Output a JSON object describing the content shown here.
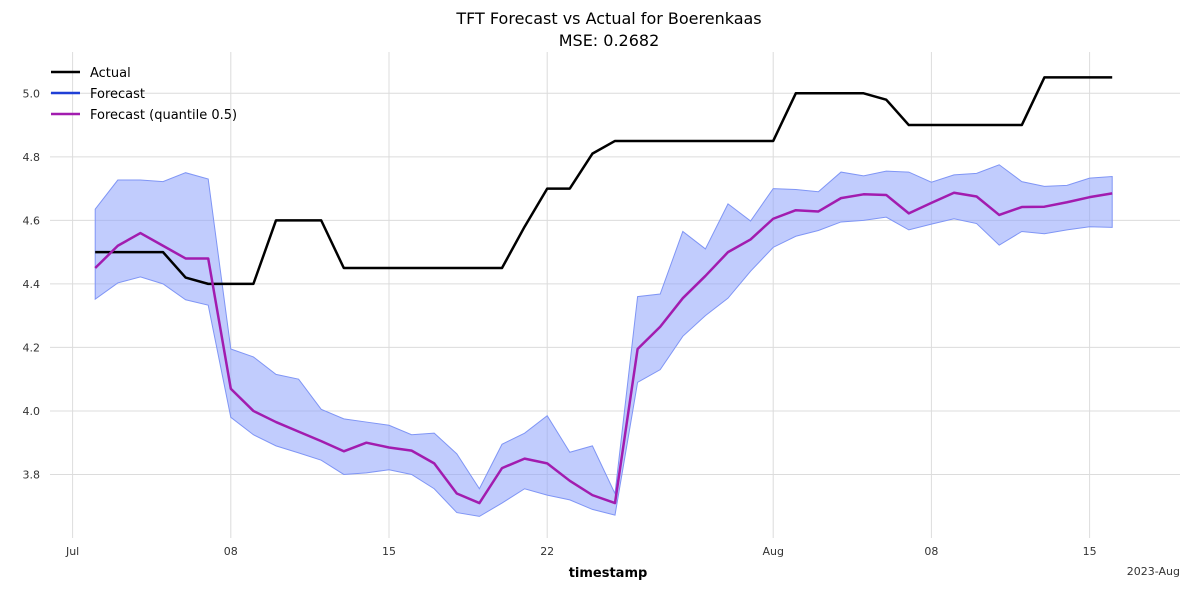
{
  "chart_data": {
    "type": "line",
    "title": "TFT Forecast vs Actual for Boerenkaas",
    "subtitle": "MSE: 0.2682",
    "xlabel": "timestamp",
    "ylabel": "",
    "x_start": "2023-07-02",
    "x_end": "2023-08-16",
    "xlim": [
      "2023-06-30",
      "2023-08-19"
    ],
    "ylim": [
      3.6,
      5.13
    ],
    "yticks": [
      3.8,
      4.0,
      4.2,
      4.4,
      4.6,
      4.8,
      5.0
    ],
    "ytick_labels": [
      "3.8",
      "4.0",
      "4.2",
      "4.4",
      "4.6",
      "4.8",
      "5.0"
    ],
    "xticks": [
      {
        "date": "2023-07-01",
        "label": "Jul"
      },
      {
        "date": "2023-07-08",
        "label": "08"
      },
      {
        "date": "2023-07-15",
        "label": "15"
      },
      {
        "date": "2023-07-22",
        "label": "22"
      },
      {
        "date": "2023-08-01",
        "label": "Aug"
      },
      {
        "date": "2023-08-08",
        "label": "08"
      },
      {
        "date": "2023-08-15",
        "label": "15"
      }
    ],
    "x_offset_label": "2023-Aug",
    "grid": true,
    "legend_position": "top-left",
    "series": [
      {
        "name": "Actual",
        "color": "#000000",
        "values": [
          4.5,
          4.5,
          4.5,
          4.5,
          4.42,
          4.4,
          4.4,
          4.4,
          4.6,
          4.6,
          4.6,
          4.45,
          4.45,
          4.45,
          4.45,
          4.45,
          4.45,
          4.45,
          4.45,
          4.58,
          4.7,
          4.7,
          4.81,
          4.85,
          4.85,
          4.85,
          4.85,
          4.85,
          4.85,
          4.85,
          4.85,
          5.0,
          5.0,
          5.0,
          5.0,
          4.98,
          4.9,
          4.9,
          4.9,
          4.9,
          4.9,
          4.9,
          5.05,
          5.05,
          5.05,
          5.05
        ]
      },
      {
        "name": "Forecast",
        "color": "#1f3fd6",
        "values": []
      },
      {
        "name": "Forecast (quantile 0.5)",
        "color": "#a21caf",
        "values": [
          4.45,
          4.52,
          4.56,
          4.52,
          4.48,
          4.48,
          4.07,
          4.0,
          3.965,
          3.935,
          3.905,
          3.873,
          3.9,
          3.885,
          3.875,
          3.835,
          3.74,
          3.71,
          3.82,
          3.85,
          3.835,
          3.78,
          3.735,
          3.71,
          4.195,
          4.265,
          4.355,
          4.425,
          4.5,
          4.54,
          4.605,
          4.632,
          4.628,
          4.67,
          4.682,
          4.68,
          4.622,
          4.655,
          4.687,
          4.675,
          4.617,
          4.642,
          4.643,
          4.657,
          4.673,
          4.685
        ]
      }
    ],
    "band": {
      "name": "Forecast interval",
      "color": "#8ea2fb",
      "upper": [
        4.635,
        4.727,
        4.727,
        4.722,
        4.75,
        4.73,
        4.195,
        4.17,
        4.115,
        4.1,
        4.005,
        3.975,
        3.965,
        3.955,
        3.925,
        3.93,
        3.865,
        3.755,
        3.895,
        3.93,
        3.985,
        3.87,
        3.89,
        3.74,
        4.36,
        4.368,
        4.565,
        4.51,
        4.652,
        4.598,
        4.7,
        4.697,
        4.69,
        4.752,
        4.74,
        4.755,
        4.752,
        4.72,
        4.743,
        4.748,
        4.775,
        4.722,
        4.707,
        4.71,
        4.733,
        4.738
      ],
      "lower": [
        4.352,
        4.403,
        4.422,
        4.4,
        4.35,
        4.333,
        3.98,
        3.925,
        3.89,
        3.868,
        3.845,
        3.8,
        3.805,
        3.815,
        3.8,
        3.755,
        3.68,
        3.668,
        3.71,
        3.755,
        3.735,
        3.72,
        3.69,
        3.672,
        4.09,
        4.13,
        4.235,
        4.3,
        4.355,
        4.44,
        4.515,
        4.55,
        4.568,
        4.595,
        4.6,
        4.61,
        4.57,
        4.588,
        4.605,
        4.59,
        4.522,
        4.565,
        4.558,
        4.57,
        4.58,
        4.578
      ]
    }
  }
}
